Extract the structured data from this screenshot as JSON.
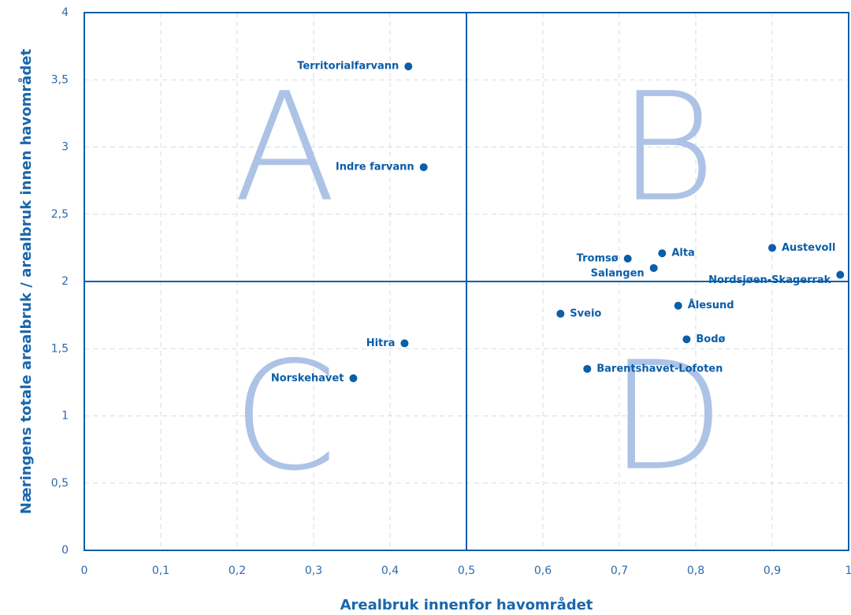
{
  "chart_data": {
    "type": "scatter",
    "x_label": "Arealbruk innenfor havområdet",
    "y_label": "Næringens totale arealbruk / arealbruk innen havområdet",
    "labels": [
      "Territorialfarvann",
      "Indre farvann",
      "Tromsø",
      "Alta",
      "Salangen",
      "Austevoll",
      "Nordsjøen-Skagerrak",
      "Ålesund",
      "Sveio",
      "Bodø",
      "Barentshavet-Lofoten",
      "Hitra",
      "Norskehavet"
    ],
    "x": [
      0.424,
      0.444,
      0.711,
      0.756,
      0.745,
      0.9,
      0.989,
      0.777,
      0.623,
      0.788,
      0.658,
      0.419,
      0.352
    ],
    "y": [
      3.6,
      2.85,
      2.17,
      2.21,
      2.1,
      2.25,
      2.05,
      1.82,
      1.76,
      1.57,
      1.35,
      1.54,
      1.28
    ],
    "color": "#0b5ea8",
    "quadrants": {
      "x": 0.5,
      "y": 2,
      "labels": [
        "A",
        "B",
        "C",
        "D"
      ],
      "label_color": "#adc3e6"
    },
    "xlim": [
      0,
      1
    ],
    "xticks": [
      0,
      {
        "value": 0.1,
        "label": "0,1"
      },
      {
        "value": 0.2,
        "label": "0,2"
      },
      {
        "value": 0.3,
        "label": "0,3"
      },
      {
        "value": 0.4,
        "label": "0,4"
      },
      {
        "value": 0.5,
        "label": "0,5"
      },
      {
        "value": 0.6,
        "label": "0,6"
      },
      {
        "value": 0.7,
        "label": "0,7"
      },
      {
        "value": 0.8,
        "label": "0,8"
      },
      {
        "value": 0.9,
        "label": "0,9"
      },
      1
    ],
    "ylim": [
      0,
      4
    ],
    "yticks": [
      0,
      {
        "value": 0.5,
        "label": "0,5"
      },
      1,
      {
        "value": 1.5,
        "label": "1,5"
      },
      2,
      {
        "value": 2.5,
        "label": "2,5"
      },
      3,
      {
        "value": 3.5,
        "label": "3,5"
      },
      4
    ],
    "grid": true
  }
}
